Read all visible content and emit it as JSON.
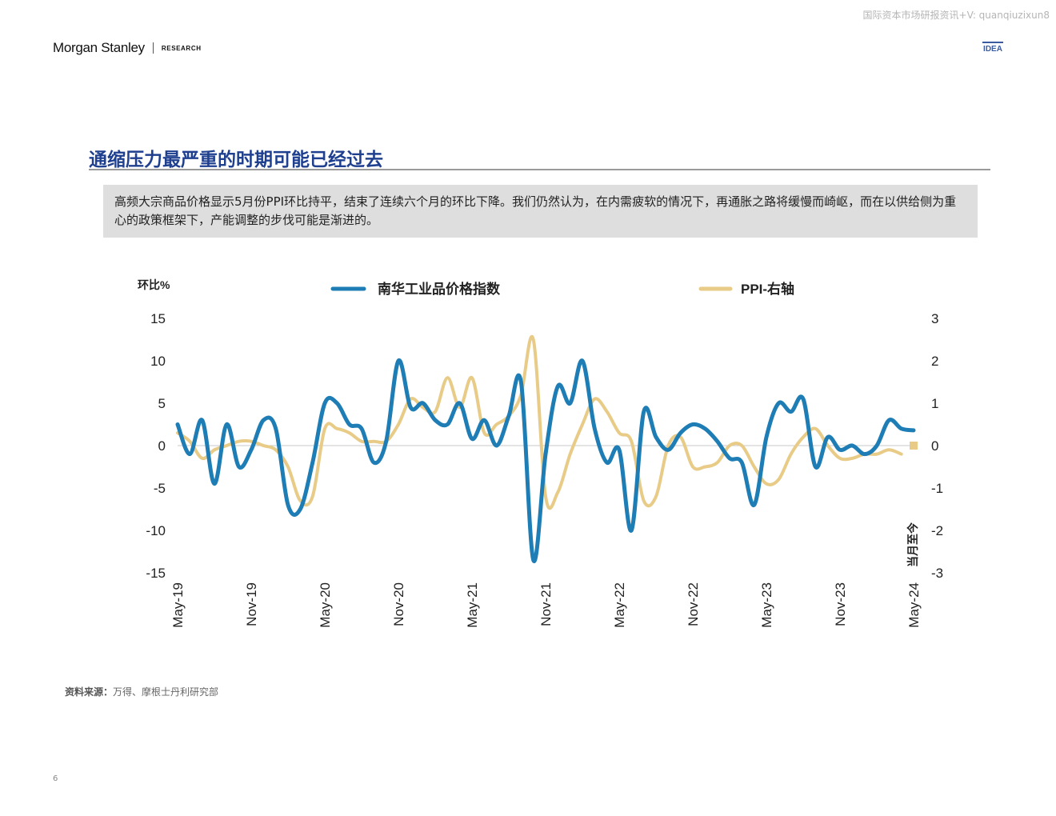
{
  "watermark": "国际资本市场研报资讯+V: quanqiuzixun8",
  "brand": {
    "name": "Morgan Stanley",
    "section": "RESEARCH",
    "badge": "IDEA"
  },
  "title": "通缩压力最严重的时期可能已经过去",
  "summary": "高频大宗商品价格显示5月份PPI环比持平，结束了连续六个月的环比下降。我们仍然认为，在内需疲软的情况下，再通胀之路将缓慢而崎岖，而在以供给侧为重心的政策框架下，产能调整的步伐可能是渐进的。",
  "source": {
    "label": "资料来源：",
    "text": "万得、摩根士丹利研究部"
  },
  "page_number": "6",
  "chart_data": {
    "type": "line",
    "ylabel": "环比%",
    "y2label": "当月至今",
    "ylim": [
      -15,
      15
    ],
    "y2lim": [
      -3,
      3
    ],
    "yticks": [
      "15",
      "10",
      "5",
      "0",
      "-5",
      "-10",
      "-15"
    ],
    "y2ticks": [
      "3",
      "2",
      "1",
      "0",
      "-1",
      "-2",
      "-3"
    ],
    "xticks": [
      "May-19",
      "Nov-19",
      "May-20",
      "Nov-20",
      "May-21",
      "Nov-21",
      "May-22",
      "Nov-22",
      "May-23",
      "Nov-23",
      "May-24"
    ],
    "x": [
      "May-19",
      "Jun-19",
      "Jul-19",
      "Aug-19",
      "Sep-19",
      "Oct-19",
      "Nov-19",
      "Dec-19",
      "Jan-20",
      "Feb-20",
      "Mar-20",
      "Apr-20",
      "May-20",
      "Jun-20",
      "Jul-20",
      "Aug-20",
      "Sep-20",
      "Oct-20",
      "Nov-20",
      "Dec-20",
      "Jan-21",
      "Feb-21",
      "Mar-21",
      "Apr-21",
      "May-21",
      "Jun-21",
      "Jul-21",
      "Aug-21",
      "Sep-21",
      "Oct-21",
      "Nov-21",
      "Dec-21",
      "Jan-22",
      "Feb-22",
      "Mar-22",
      "Apr-22",
      "May-22",
      "Jun-22",
      "Jul-22",
      "Aug-22",
      "Sep-22",
      "Oct-22",
      "Nov-22",
      "Dec-22",
      "Jan-23",
      "Feb-23",
      "Mar-23",
      "Apr-23",
      "May-23",
      "Jun-23",
      "Jul-23",
      "Aug-23",
      "Sep-23",
      "Oct-23",
      "Nov-23",
      "Dec-23",
      "Jan-24",
      "Feb-24",
      "Mar-24",
      "Apr-24",
      "May-24"
    ],
    "series": [
      {
        "name": "南华工业品价格指数",
        "axis": "left",
        "color": "#1e7db5",
        "values": [
          2.5,
          -1.0,
          3.0,
          -4.5,
          2.5,
          -2.5,
          -0.5,
          3.0,
          2.0,
          -7.0,
          -7.5,
          -2.0,
          5.0,
          5.0,
          2.5,
          2.0,
          -2.0,
          0.5,
          10.0,
          4.5,
          5.0,
          3.0,
          2.5,
          5.0,
          0.8,
          3.0,
          0.0,
          3.5,
          7.5,
          -13.5,
          -1.0,
          7.0,
          5.0,
          10.0,
          2.0,
          -2.0,
          -0.5,
          -10.0,
          4.0,
          1.0,
          -0.5,
          1.5,
          2.5,
          2.0,
          0.5,
          -1.5,
          -2.0,
          -7.0,
          1.0,
          5.0,
          4.0,
          5.5,
          -2.5,
          1.0,
          -0.5,
          0.0,
          -1.0,
          0.0,
          3.0,
          2.0,
          1.8
        ]
      },
      {
        "name": "PPI-右轴",
        "axis": "right",
        "color": "#e8cb86",
        "values": [
          0.3,
          0.1,
          -0.3,
          -0.1,
          0.0,
          0.1,
          0.1,
          0.0,
          -0.1,
          -0.5,
          -1.3,
          -1.2,
          0.4,
          0.4,
          0.3,
          0.1,
          0.1,
          0.1,
          0.5,
          1.1,
          0.9,
          0.8,
          1.6,
          0.9,
          1.6,
          0.3,
          0.5,
          0.7,
          1.2,
          2.5,
          -1.2,
          -1.1,
          -0.2,
          0.5,
          1.1,
          0.8,
          0.3,
          0.1,
          -1.3,
          -1.2,
          0.0,
          0.2,
          -0.5,
          -0.5,
          -0.4,
          0.0,
          0.0,
          -0.5,
          -0.9,
          -0.8,
          -0.2,
          0.2,
          0.4,
          0.0,
          -0.3,
          -0.3,
          -0.2,
          -0.2,
          -0.1,
          -0.2,
          0.0
        ]
      }
    ],
    "zero_line": true,
    "legend_position": "top"
  }
}
